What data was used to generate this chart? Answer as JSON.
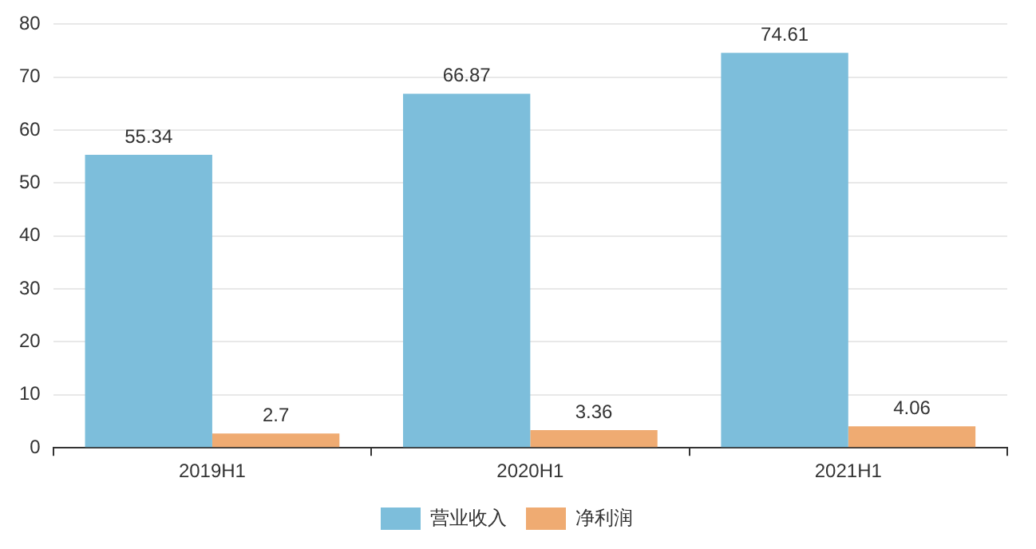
{
  "chart_data": {
    "type": "bar",
    "categories": [
      "2019H1",
      "2020H1",
      "2021H1"
    ],
    "series": [
      {
        "name": "营业收入",
        "color": "#7dbedb",
        "values": [
          55.34,
          66.87,
          74.61
        ]
      },
      {
        "name": "净利润",
        "color": "#efab72",
        "values": [
          2.7,
          3.36,
          4.06
        ]
      }
    ],
    "ylim": [
      0,
      80
    ],
    "yticks": [
      0,
      10,
      20,
      30,
      40,
      50,
      60,
      70,
      80
    ],
    "grid": "y",
    "legend": "bottom",
    "data_labels": true
  }
}
